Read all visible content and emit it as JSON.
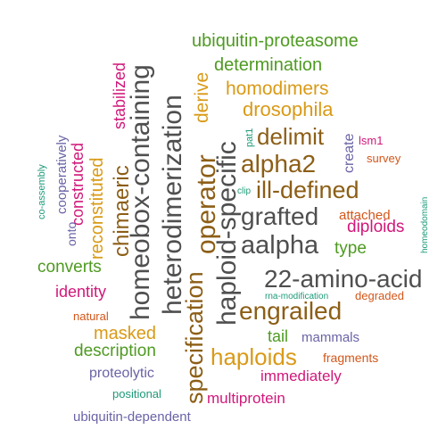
{
  "palette": {
    "green": "#4f9a22",
    "gold": "#d99a17",
    "brown": "#8c5e16",
    "gray": "#4f4f4f",
    "magenta": "#d1187a",
    "purple": "#6a63a6",
    "orange": "#d3561a",
    "teal": "#1c9a78"
  },
  "words": [
    {
      "text": "ubiquitin-proteasome",
      "color": "green"
    },
    {
      "text": "determination",
      "color": "green"
    },
    {
      "text": "homodimers",
      "color": "gold"
    },
    {
      "text": "drosophila",
      "color": "gold"
    },
    {
      "text": "delimit",
      "color": "brown"
    },
    {
      "text": "alpha2",
      "color": "brown"
    },
    {
      "text": "ill-defined",
      "color": "brown"
    },
    {
      "text": "grafted",
      "color": "gray"
    },
    {
      "text": "aalpha",
      "color": "gray"
    },
    {
      "text": "22-amino-acid",
      "color": "gray"
    },
    {
      "text": "engrailed",
      "color": "brown"
    },
    {
      "text": "haploids",
      "color": "gold"
    },
    {
      "text": "immediately",
      "color": "magenta"
    },
    {
      "text": "multiprotein",
      "color": "magenta"
    },
    {
      "text": "tail",
      "color": "green"
    },
    {
      "text": "mammals",
      "color": "purple"
    },
    {
      "text": "fragments",
      "color": "orange"
    },
    {
      "text": "degraded",
      "color": "orange"
    },
    {
      "text": "rna-modification",
      "color": "teal"
    },
    {
      "text": "diploids",
      "color": "magenta"
    },
    {
      "text": "attached",
      "color": "orange"
    },
    {
      "text": "type",
      "color": "green"
    },
    {
      "text": "survey",
      "color": "orange"
    },
    {
      "text": "lsm1",
      "color": "magenta"
    },
    {
      "text": "create",
      "color": "purple"
    },
    {
      "text": "pat1",
      "color": "teal"
    },
    {
      "text": "clip",
      "color": "teal"
    },
    {
      "text": "homeodomain",
      "color": "teal"
    },
    {
      "text": "haploid-specific",
      "color": "gray"
    },
    {
      "text": "operator",
      "color": "brown"
    },
    {
      "text": "derive",
      "color": "gold"
    },
    {
      "text": "specification",
      "color": "brown"
    },
    {
      "text": "heterodimerization",
      "color": "gray"
    },
    {
      "text": "homeobox-containing",
      "color": "gray"
    },
    {
      "text": "chimaeric",
      "color": "brown"
    },
    {
      "text": "stabilized",
      "color": "magenta"
    },
    {
      "text": "reconstituted",
      "color": "gold"
    },
    {
      "text": "constructed",
      "color": "magenta"
    },
    {
      "text": "cooperatively",
      "color": "purple"
    },
    {
      "text": "co-assembly",
      "color": "teal"
    },
    {
      "text": "onto",
      "color": "purple"
    },
    {
      "text": "converts",
      "color": "green"
    },
    {
      "text": "identity",
      "color": "magenta"
    },
    {
      "text": "natural",
      "color": "orange"
    },
    {
      "text": "masked",
      "color": "gold"
    },
    {
      "text": "description",
      "color": "green"
    },
    {
      "text": "proteolytic",
      "color": "purple"
    },
    {
      "text": "positional",
      "color": "teal"
    },
    {
      "text": "ubiquitin-dependent",
      "color": "purple"
    }
  ]
}
